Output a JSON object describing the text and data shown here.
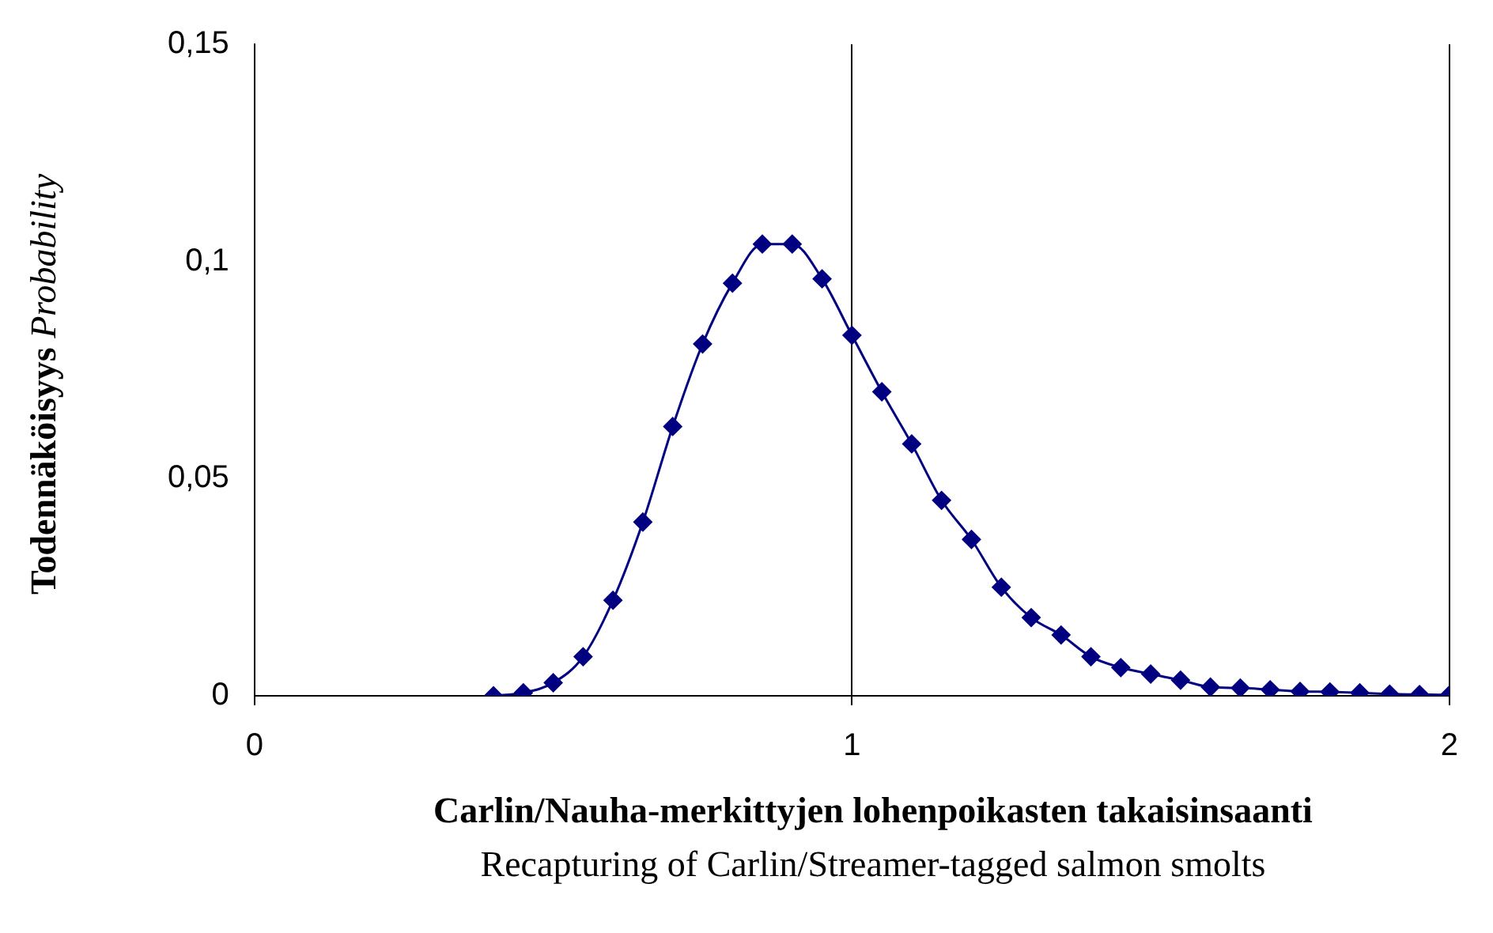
{
  "chart_data": {
    "type": "line",
    "xlabel": "Carlin/Nauha-merkittyjen lohenpoikasten takaisinsaanti\nRecapturing of Carlin/Streamer-tagged salmon smolts",
    "ylabel": "Todennäköisyys Probability",
    "x": [
      0.4,
      0.45,
      0.5,
      0.55,
      0.6,
      0.65,
      0.7,
      0.75,
      0.8,
      0.85,
      0.9,
      0.95,
      1.0,
      1.05,
      1.1,
      1.15,
      1.2,
      1.25,
      1.3,
      1.35,
      1.4,
      1.45,
      1.5,
      1.55,
      1.6,
      1.65,
      1.7,
      1.75,
      1.8,
      1.85,
      1.9,
      1.95,
      2.0
    ],
    "series": [
      {
        "color": "#000080",
        "values": [
          0,
          0.0007,
          0.003,
          0.009,
          0.022,
          0.04,
          0.062,
          0.081,
          0.095,
          0.104,
          0.104,
          0.096,
          0.083,
          0.07,
          0.058,
          0.045,
          0.036,
          0.025,
          0.018,
          0.014,
          0.009,
          0.0065,
          0.005,
          0.0036,
          0.002,
          0.0018,
          0.0014,
          0.001,
          0.0009,
          0.0007,
          0.0004,
          0.0003,
          0.0002
        ]
      }
    ],
    "xlim": [
      0,
      2
    ],
    "xticks": [
      0,
      1,
      2
    ],
    "ylim": [
      0,
      0.15
    ],
    "yticks": [
      0,
      {
        "value": 0.05,
        "label": "0,05"
      },
      {
        "value": 0.1,
        "label": "0,1"
      },
      {
        "value": 0.15,
        "label": "0,15"
      }
    ],
    "grid": "x",
    "marker": "diamond",
    "line_style": "solid",
    "legend": false
  }
}
